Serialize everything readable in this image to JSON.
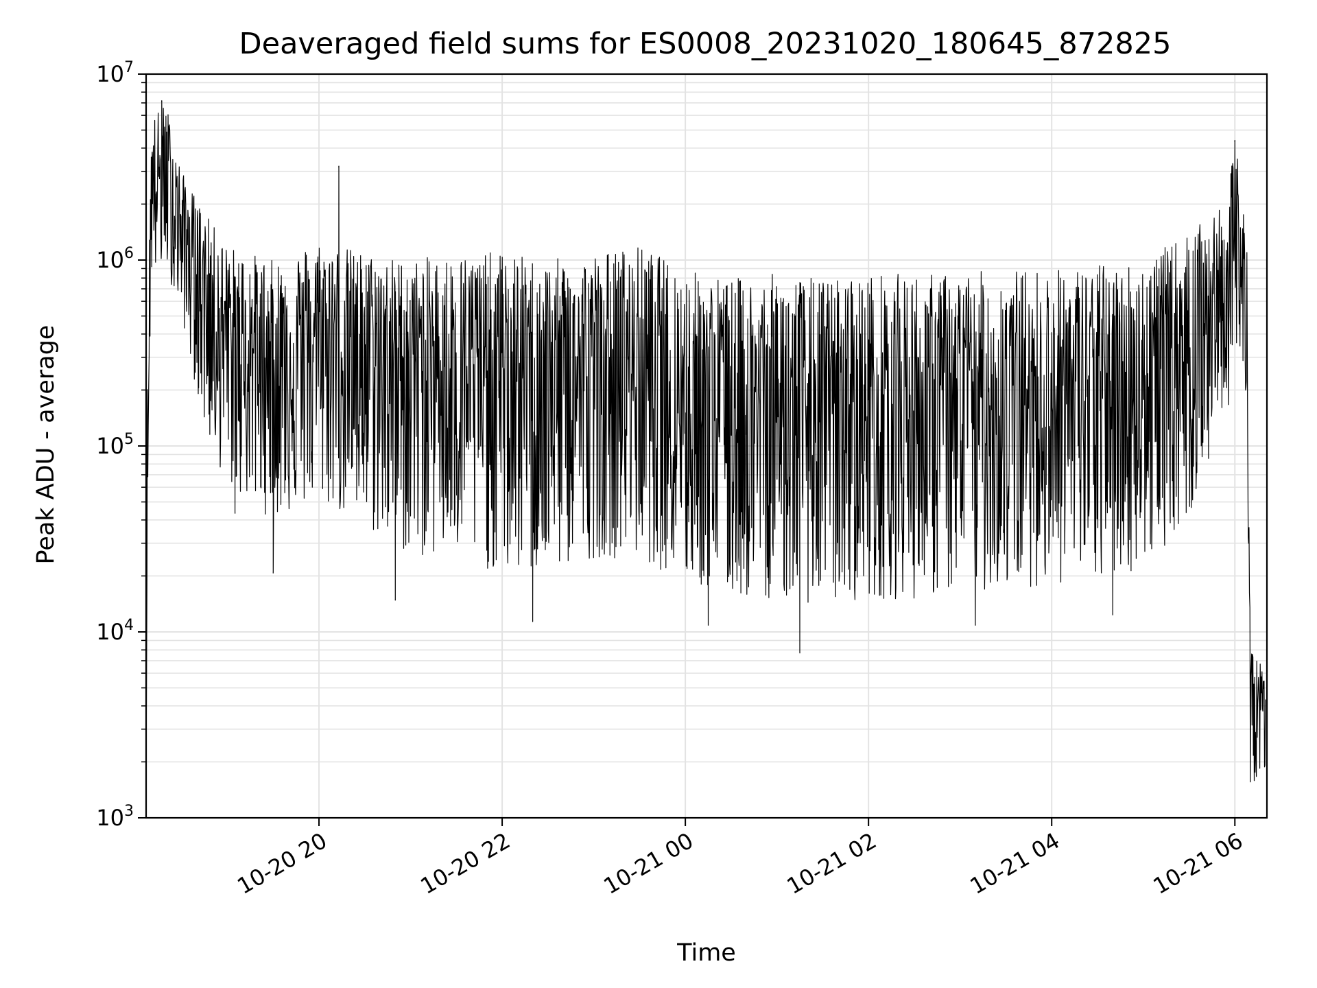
{
  "chart_data": {
    "type": "line",
    "title": "Deaveraged field sums for ES0008_20231020_180645_872825",
    "xlabel": "Time",
    "ylabel": "Peak ADU - average",
    "yscale": "log",
    "ylim": [
      1000,
      10000000
    ],
    "xlim": [
      "2023-10-20T18:06:45",
      "2023-10-21T06:21:00"
    ],
    "grid": true,
    "line_color": "#000000",
    "grid_color": "#e3e3e3",
    "x_ticks": [
      {
        "value": "2023-10-20T20:00:00",
        "label": "10-20 20"
      },
      {
        "value": "2023-10-20T22:00:00",
        "label": "10-20 22"
      },
      {
        "value": "2023-10-21T00:00:00",
        "label": "10-21 00"
      },
      {
        "value": "2023-10-21T02:00:00",
        "label": "10-21 02"
      },
      {
        "value": "2023-10-21T04:00:00",
        "label": "10-21 04"
      },
      {
        "value": "2023-10-21T06:00:00",
        "label": "10-21 06"
      }
    ],
    "y_ticks": [
      {
        "value": 1000,
        "base": "10",
        "exp": "3"
      },
      {
        "value": 10000,
        "base": "10",
        "exp": "4"
      },
      {
        "value": 100000,
        "base": "10",
        "exp": "5"
      },
      {
        "value": 1000000,
        "base": "10",
        "exp": "6"
      },
      {
        "value": 10000000,
        "base": "10",
        "exp": "7"
      }
    ],
    "envelope": {
      "description": "dense noisy signal; per time point: typical center value, typical low and high spread, and occasional extreme spikes",
      "points": [
        {
          "t": "2023-10-20T18:06:45",
          "mid": 1600,
          "low": 1600,
          "high": 2000
        },
        {
          "t": "2023-10-20T18:07:30",
          "mid": 60000,
          "low": 40000,
          "high": 200000
        },
        {
          "t": "2023-10-20T18:10:00",
          "mid": 2500000,
          "low": 800000,
          "high": 6000000
        },
        {
          "t": "2023-10-20T18:20:00",
          "mid": 3000000,
          "low": 900000,
          "high": 7000000
        },
        {
          "t": "2023-10-20T18:30:00",
          "mid": 1500000,
          "low": 500000,
          "high": 3000000
        },
        {
          "t": "2023-10-20T18:45:00",
          "mid": 800000,
          "low": 120000,
          "high": 1800000
        },
        {
          "t": "2023-10-20T19:00:00",
          "mid": 400000,
          "low": 60000,
          "high": 1200000
        },
        {
          "t": "2023-10-20T19:30:00",
          "mid": 300000,
          "low": 40000,
          "high": 1000000
        },
        {
          "t": "2023-10-20T20:00:00",
          "mid": 400000,
          "low": 50000,
          "high": 1300000
        },
        {
          "t": "2023-10-20T20:30:00",
          "mid": 350000,
          "low": 35000,
          "high": 1100000
        },
        {
          "t": "2023-10-20T21:00:00",
          "mid": 300000,
          "low": 25000,
          "high": 1000000
        },
        {
          "t": "2023-10-20T21:30:00",
          "mid": 280000,
          "low": 25000,
          "high": 1100000
        },
        {
          "t": "2023-10-20T22:00:00",
          "mid": 260000,
          "low": 20000,
          "high": 1100000
        },
        {
          "t": "2023-10-20T22:30:00",
          "mid": 250000,
          "low": 20000,
          "high": 1000000
        },
        {
          "t": "2023-10-20T23:00:00",
          "mid": 260000,
          "low": 25000,
          "high": 1100000
        },
        {
          "t": "2023-10-20T23:30:00",
          "mid": 280000,
          "low": 25000,
          "high": 1200000
        },
        {
          "t": "2023-10-21T00:00:00",
          "mid": 200000,
          "low": 18000,
          "high": 900000
        },
        {
          "t": "2023-10-21T00:30:00",
          "mid": 170000,
          "low": 15000,
          "high": 800000
        },
        {
          "t": "2023-10-21T01:00:00",
          "mid": 170000,
          "low": 15000,
          "high": 850000
        },
        {
          "t": "2023-10-21T01:30:00",
          "mid": 150000,
          "low": 14000,
          "high": 800000
        },
        {
          "t": "2023-10-21T02:00:00",
          "mid": 160000,
          "low": 15000,
          "high": 850000
        },
        {
          "t": "2023-10-21T02:30:00",
          "mid": 170000,
          "low": 15000,
          "high": 850000
        },
        {
          "t": "2023-10-21T03:00:00",
          "mid": 180000,
          "low": 16000,
          "high": 850000
        },
        {
          "t": "2023-10-21T03:30:00",
          "mid": 180000,
          "low": 17000,
          "high": 900000
        },
        {
          "t": "2023-10-21T04:00:00",
          "mid": 190000,
          "low": 18000,
          "high": 900000
        },
        {
          "t": "2023-10-21T04:30:00",
          "mid": 200000,
          "low": 18000,
          "high": 950000
        },
        {
          "t": "2023-10-21T05:00:00",
          "mid": 230000,
          "low": 22000,
          "high": 1000000
        },
        {
          "t": "2023-10-21T05:30:00",
          "mid": 400000,
          "low": 40000,
          "high": 1400000
        },
        {
          "t": "2023-10-21T05:55:00",
          "mid": 800000,
          "low": 150000,
          "high": 2000000
        },
        {
          "t": "2023-10-21T06:00:00",
          "mid": 1200000,
          "low": 300000,
          "high": 4500000
        },
        {
          "t": "2023-10-21T06:08:00",
          "mid": 600000,
          "low": 150000,
          "high": 2000000
        },
        {
          "t": "2023-10-21T06:10:00",
          "mid": 5000,
          "low": 1500,
          "high": 9000
        },
        {
          "t": "2023-10-21T06:20:00",
          "mid": 3800,
          "low": 1800,
          "high": 6000
        }
      ]
    },
    "spikes": [
      {
        "t": "2023-10-20T18:17:00",
        "value": 7200000
      },
      {
        "t": "2023-10-20T18:41:00",
        "value": 320000
      },
      {
        "t": "2023-10-20T19:05:00",
        "value": 44000
      },
      {
        "t": "2023-10-20T19:30:00",
        "value": 21000
      },
      {
        "t": "2023-10-20T20:13:00",
        "value": 3200000
      },
      {
        "t": "2023-10-20T20:50:00",
        "value": 15000
      },
      {
        "t": "2023-10-20T22:20:00",
        "value": 11500
      },
      {
        "t": "2023-10-21T00:15:00",
        "value": 11000
      },
      {
        "t": "2023-10-21T01:15:00",
        "value": 7800
      },
      {
        "t": "2023-10-21T03:10:00",
        "value": 11000
      },
      {
        "t": "2023-10-21T04:40:00",
        "value": 12500
      },
      {
        "t": "2023-10-21T06:00:00",
        "value": 4400000
      }
    ]
  }
}
